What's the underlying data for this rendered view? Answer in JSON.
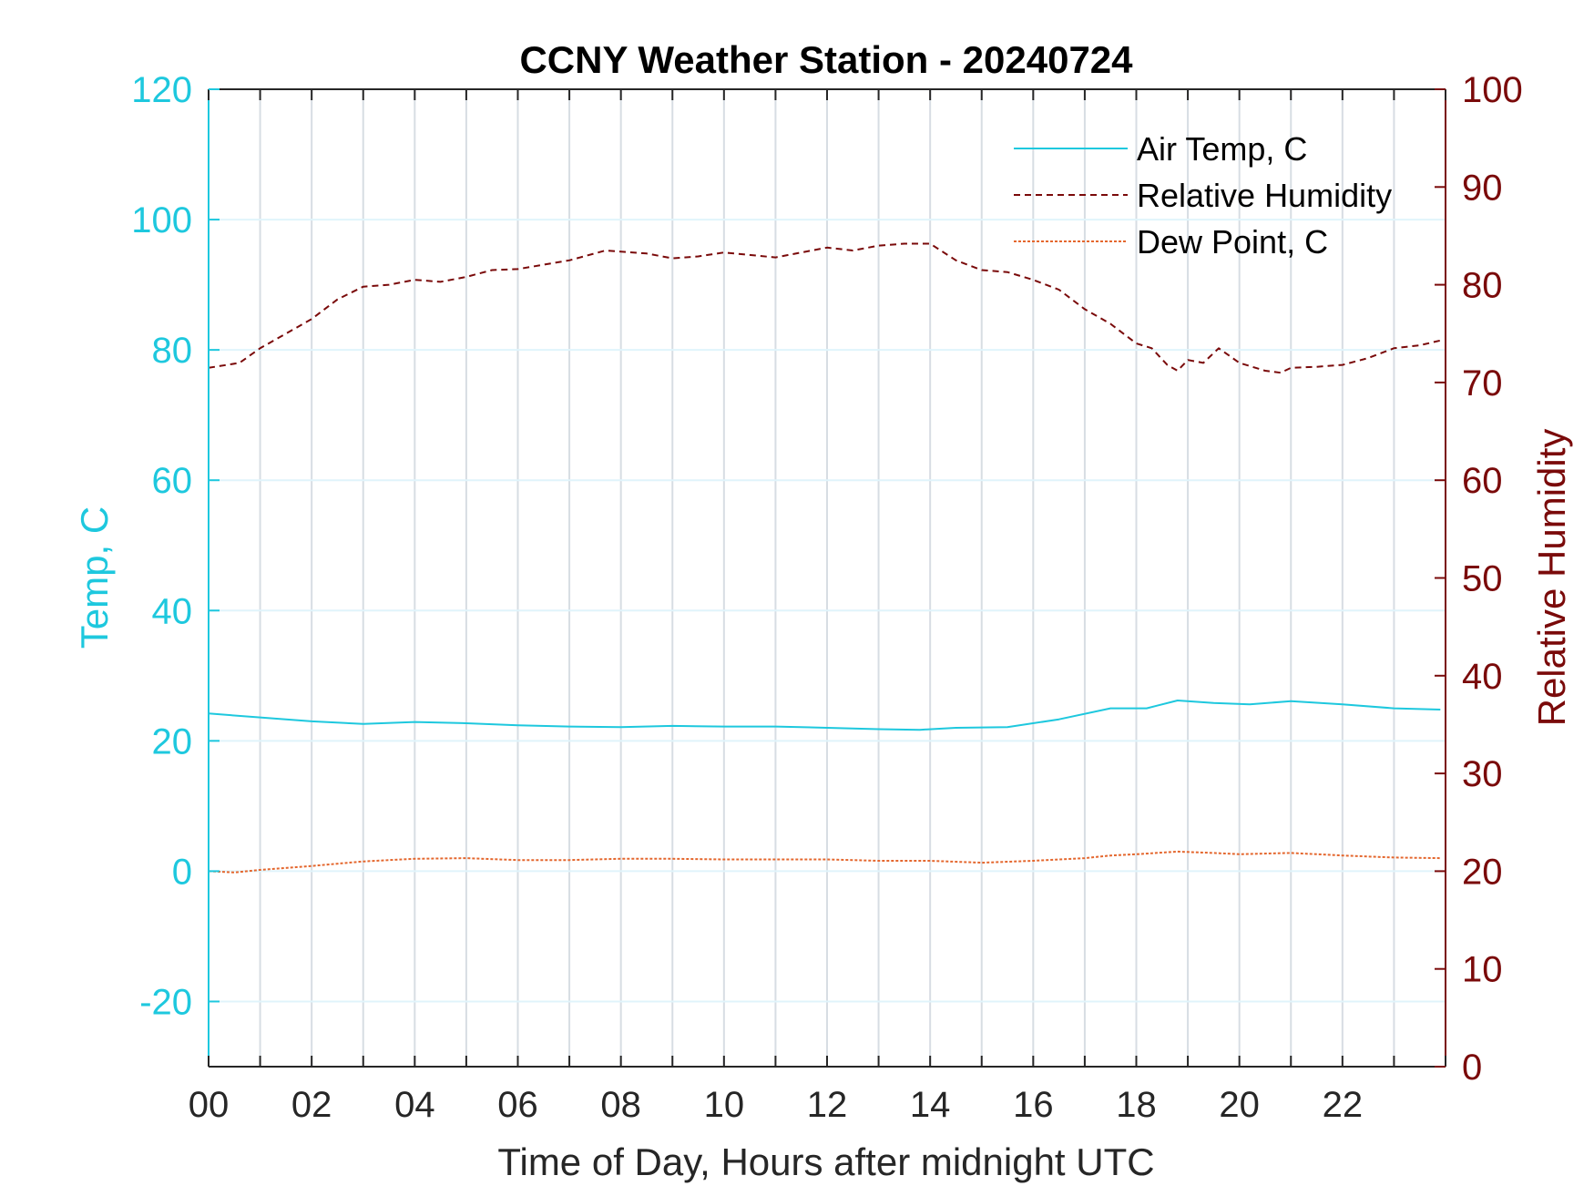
{
  "chart_data": {
    "type": "line",
    "title": "CCNY Weather Station - 20240724",
    "xlabel": "Time of Day, Hours after midnight UTC",
    "ylabel_left": "Temp, C",
    "ylabel_right": "Relative Humidity",
    "xlim": [
      0,
      24
    ],
    "ylim_left": [
      -30,
      120
    ],
    "ylim_right": [
      0,
      100
    ],
    "x_ticks": [
      0,
      2,
      4,
      6,
      8,
      10,
      12,
      14,
      16,
      18,
      20,
      22
    ],
    "x_tick_labels": [
      "00",
      "02",
      "04",
      "06",
      "08",
      "10",
      "12",
      "14",
      "16",
      "18",
      "20",
      "22"
    ],
    "y_left_ticks": [
      -20,
      0,
      20,
      40,
      60,
      80,
      100,
      120
    ],
    "y_left_tick_labels": [
      "-20",
      "0",
      "20",
      "40",
      "60",
      "80",
      "100",
      "120"
    ],
    "y_right_ticks": [
      0,
      10,
      20,
      30,
      40,
      50,
      60,
      70,
      80,
      90,
      100
    ],
    "y_right_tick_labels": [
      "0",
      "10",
      "20",
      "30",
      "40",
      "50",
      "60",
      "70",
      "80",
      "90",
      "100"
    ],
    "grid": true,
    "legend_position": "top-right",
    "colors": {
      "left_axis": "#1ec8de",
      "right_axis": "#7a0a0a",
      "dew": "#e4672e",
      "grid_x": "#d7dde3",
      "grid_y": "#e0f4fb"
    },
    "series": [
      {
        "name": "Air Temp, C",
        "axis": "left",
        "style": "solid",
        "color": "#1ec8de",
        "x": [
          0,
          1,
          2,
          3,
          4,
          5,
          6,
          7,
          8,
          9,
          10,
          11,
          12,
          13,
          13.8,
          14.5,
          15.5,
          16.5,
          17.5,
          18.2,
          18.8,
          19.5,
          20.2,
          21,
          22,
          23,
          23.9
        ],
        "y": [
          24.2,
          23.6,
          23.0,
          22.6,
          22.9,
          22.7,
          22.4,
          22.2,
          22.1,
          22.3,
          22.2,
          22.2,
          22.0,
          21.8,
          21.7,
          22.0,
          22.1,
          23.3,
          25.0,
          25.0,
          26.2,
          25.8,
          25.6,
          26.1,
          25.6,
          25.0,
          24.8
        ]
      },
      {
        "name": "Relative Humidity",
        "axis": "right",
        "style": "dashed",
        "color": "#7a0a0a",
        "x": [
          0,
          0.6,
          1,
          1.5,
          2,
          2.5,
          3,
          3.5,
          4,
          4.5,
          5,
          5.5,
          6,
          7,
          7.7,
          8.5,
          9,
          9.5,
          10,
          11,
          12,
          12.5,
          13,
          13.5,
          14,
          14.5,
          15,
          15.5,
          16,
          16.5,
          17,
          17.5,
          18,
          18.3,
          18.6,
          18.8,
          19,
          19.3,
          19.6,
          20,
          20.5,
          20.8,
          21,
          21.5,
          22,
          22.5,
          23,
          23.5,
          23.9
        ],
        "y": [
          71.5,
          72.0,
          73.5,
          75.0,
          76.5,
          78.5,
          79.8,
          80.0,
          80.5,
          80.3,
          80.8,
          81.5,
          81.6,
          82.5,
          83.5,
          83.2,
          82.7,
          82.9,
          83.3,
          82.8,
          83.8,
          83.5,
          84.0,
          84.2,
          84.2,
          82.5,
          81.5,
          81.3,
          80.5,
          79.5,
          77.5,
          76.0,
          74.0,
          73.5,
          71.8,
          71.2,
          72.3,
          72.0,
          73.5,
          72.0,
          71.2,
          71.0,
          71.5,
          71.6,
          71.8,
          72.5,
          73.5,
          73.8,
          74.3
        ]
      },
      {
        "name": "Dew Point, C",
        "axis": "left",
        "style": "dotted",
        "color": "#e4672e",
        "x": [
          0,
          0.5,
          1,
          2,
          3,
          4,
          5,
          6,
          7,
          8,
          9,
          10,
          11,
          12,
          13,
          14,
          15,
          16,
          17,
          17.5,
          18,
          18.8,
          19.5,
          20,
          21,
          22,
          23,
          23.9
        ],
        "y": [
          0.0,
          -0.2,
          0.2,
          0.8,
          1.5,
          1.9,
          2.0,
          1.7,
          1.7,
          1.9,
          1.9,
          1.8,
          1.8,
          1.8,
          1.6,
          1.6,
          1.3,
          1.6,
          2.0,
          2.4,
          2.6,
          3.0,
          2.8,
          2.6,
          2.8,
          2.4,
          2.1,
          2.0
        ]
      }
    ]
  }
}
